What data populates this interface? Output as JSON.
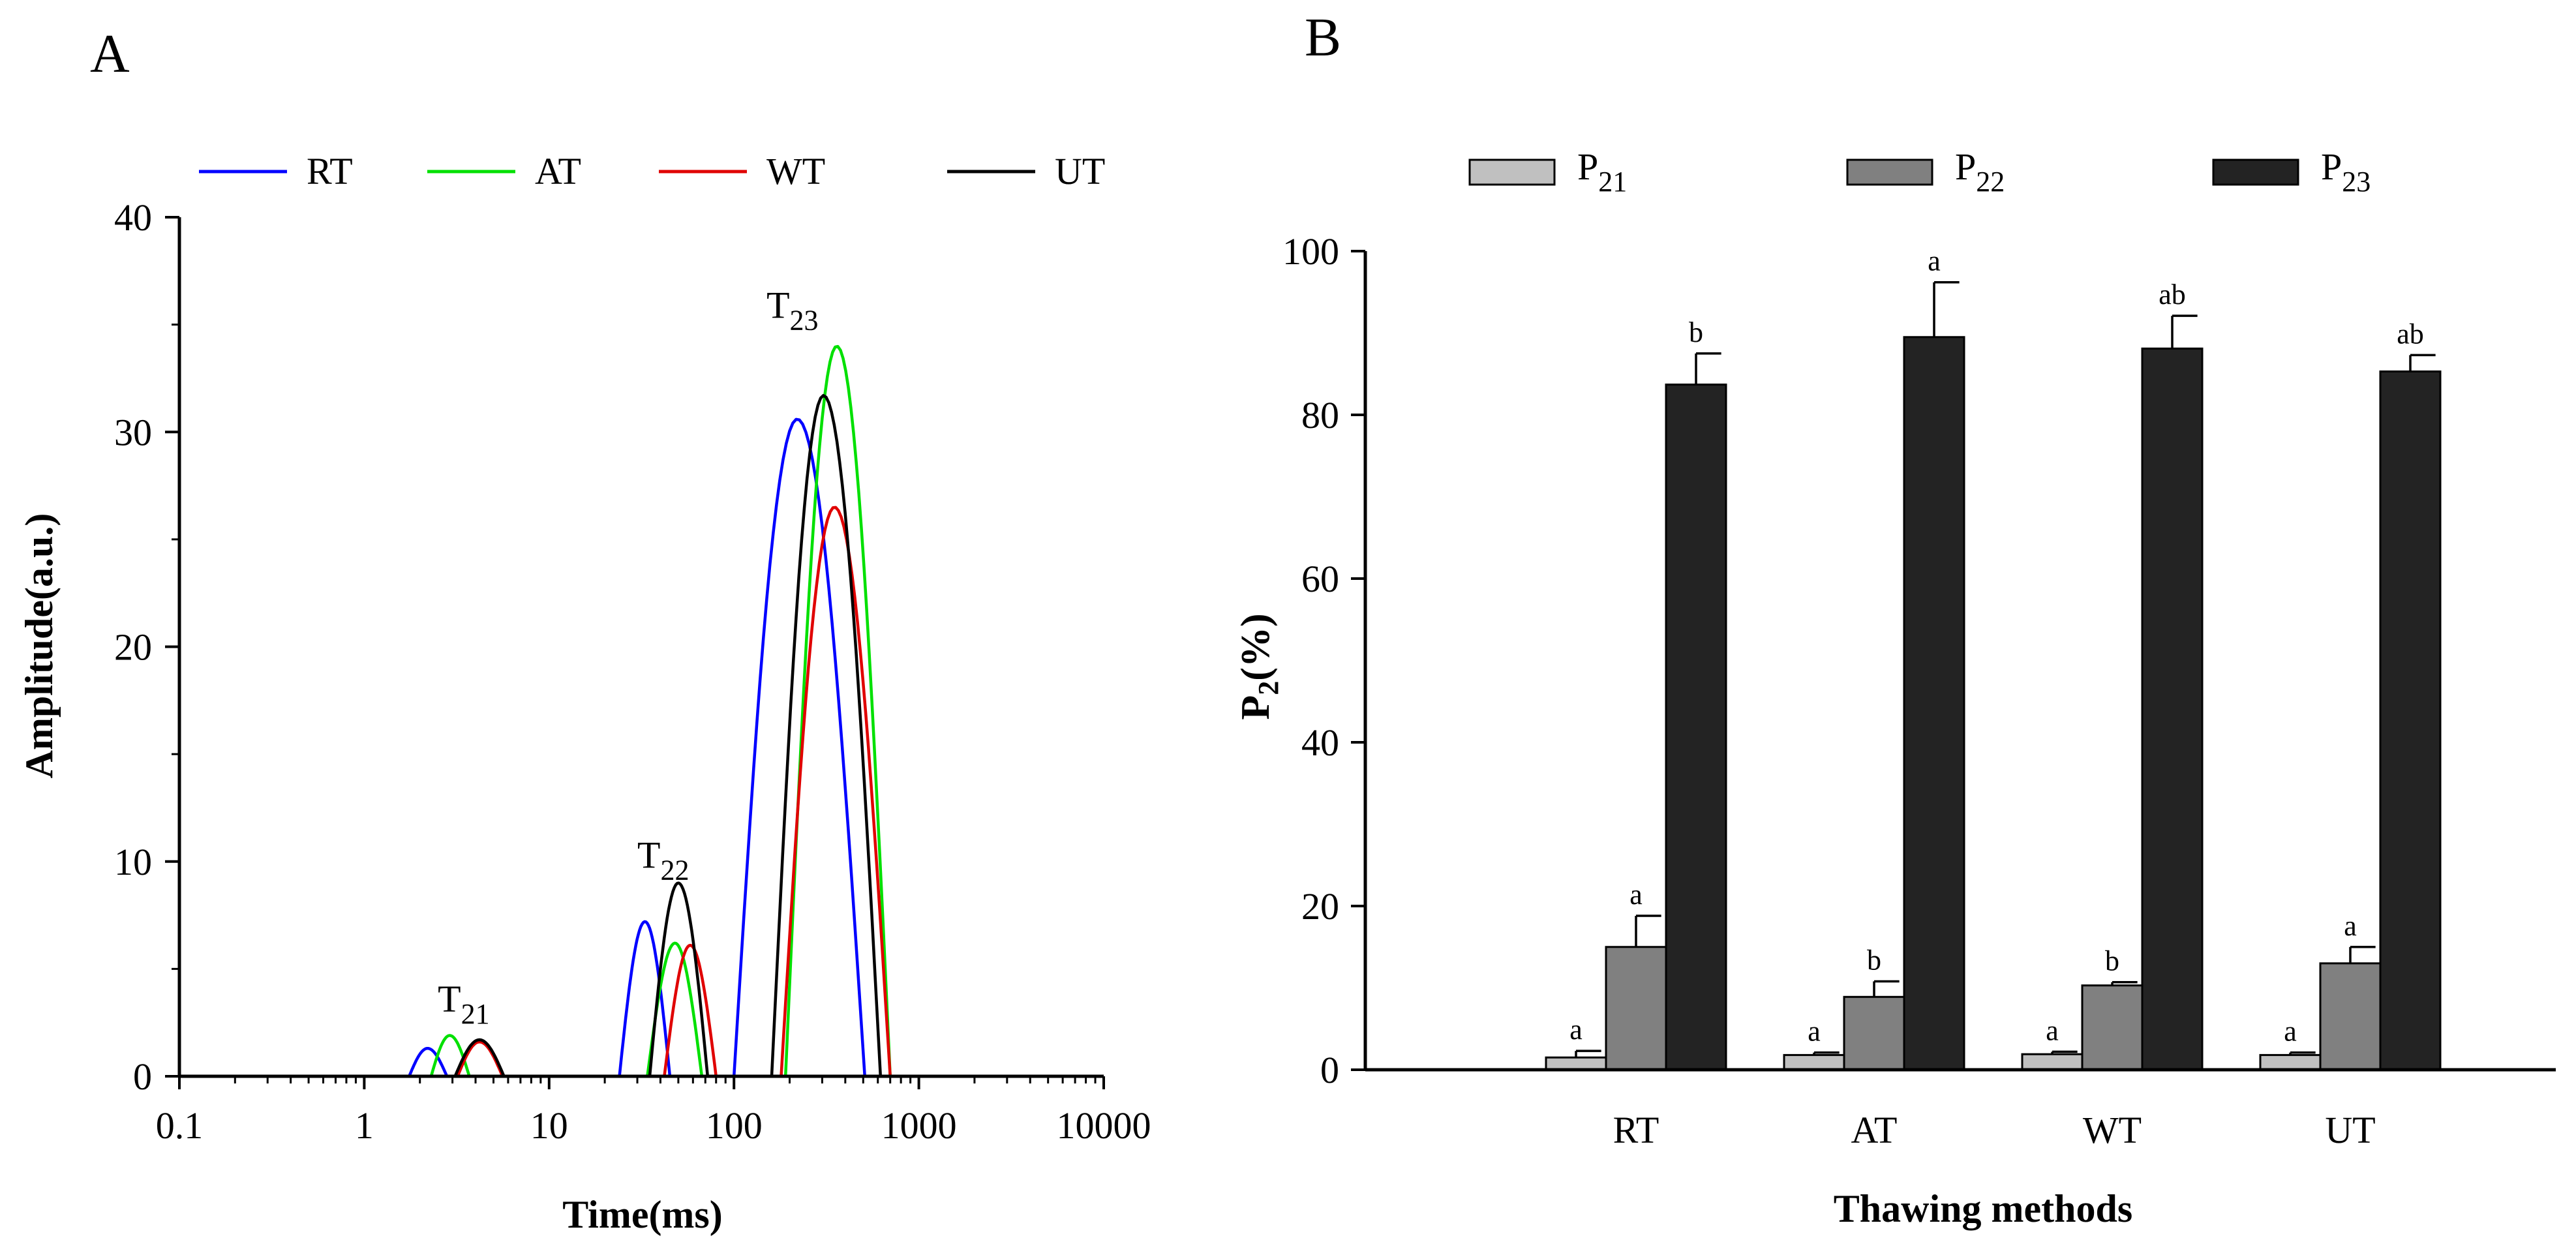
{
  "chart_data": [
    {
      "type": "line",
      "panel_label": "A",
      "xlabel": "Time(ms)",
      "ylabel": "Amplitude(a.u.)",
      "x_scale": "log",
      "xlim": [
        0.1,
        10000
      ],
      "ylim": [
        0,
        40
      ],
      "x_ticks": [
        0.1,
        1,
        10,
        100,
        1000,
        10000
      ],
      "x_tick_labels": [
        "0.1",
        "1",
        "10",
        "100",
        "1000",
        "10000"
      ],
      "y_ticks": [
        0,
        10,
        20,
        30,
        40
      ],
      "y_tick_labels": [
        "0",
        "10",
        "20",
        "30",
        "40"
      ],
      "grid": false,
      "legend_position": "top",
      "peak_labels": [
        {
          "base": "T",
          "sub": "21",
          "x": 2.5,
          "y": 3.0
        },
        {
          "base": "T",
          "sub": "22",
          "x": 30,
          "y": 9.7
        },
        {
          "base": "T",
          "sub": "23",
          "x": 150,
          "y": 35.3
        }
      ],
      "series": [
        {
          "name": "RT",
          "color": "#0000ff",
          "peaks": [
            {
              "center": 2.2,
              "amplitude": 1.3,
              "start": 1.75,
              "end": 2.8
            },
            {
              "center": 33,
              "amplitude": 7.2,
              "start": 24,
              "end": 45
            },
            {
              "center": 220,
              "amplitude": 30.6,
              "start": 100,
              "end": 510
            }
          ]
        },
        {
          "name": "AT",
          "color": "#00e000",
          "peaks": [
            {
              "center": 2.9,
              "amplitude": 1.9,
              "start": 2.3,
              "end": 3.7
            },
            {
              "center": 48,
              "amplitude": 6.2,
              "start": 34,
              "end": 67
            },
            {
              "center": 360,
              "amplitude": 34.0,
              "start": 190,
              "end": 700
            }
          ]
        },
        {
          "name": "WT",
          "color": "#e00000",
          "peaks": [
            {
              "center": 4.2,
              "amplitude": 1.6,
              "start": 3.2,
              "end": 5.6
            },
            {
              "center": 58,
              "amplitude": 6.1,
              "start": 42,
              "end": 80
            },
            {
              "center": 350,
              "amplitude": 26.5,
              "start": 180,
              "end": 700
            }
          ]
        },
        {
          "name": "UT",
          "color": "#000000",
          "peaks": [
            {
              "center": 4.2,
              "amplitude": 1.7,
              "start": 3.1,
              "end": 5.7
            },
            {
              "center": 50,
              "amplitude": 9.0,
              "start": 35,
              "end": 72
            },
            {
              "center": 305,
              "amplitude": 31.7,
              "start": 160,
              "end": 620
            }
          ]
        }
      ]
    },
    {
      "type": "bar",
      "panel_label": "B",
      "xlabel": "Thawing methods",
      "ylabel": "P",
      "ylabel_sub": "2",
      "ylabel_suffix": "(%)",
      "ylim": [
        0,
        100
      ],
      "y_ticks": [
        0,
        20,
        40,
        60,
        80,
        100
      ],
      "y_tick_labels": [
        "0",
        "20",
        "40",
        "60",
        "80",
        "100"
      ],
      "grid": false,
      "legend_position": "top",
      "categories": [
        "RT",
        "AT",
        "WT",
        "UT"
      ],
      "series": [
        {
          "name": "P",
          "name_sub": "21",
          "color": "#c0c0c0",
          "values": [
            1.5,
            1.8,
            1.9,
            1.8
          ],
          "errors": [
            0.8,
            0.3,
            0.3,
            0.3
          ],
          "letters": [
            "a",
            "a",
            "a",
            "a"
          ]
        },
        {
          "name": "P",
          "name_sub": "22",
          "color": "#808080",
          "values": [
            15.0,
            8.9,
            10.3,
            13.0
          ],
          "errors": [
            3.8,
            1.9,
            0.4,
            2.0
          ],
          "letters": [
            "a",
            "b",
            "b",
            "a"
          ]
        },
        {
          "name": "P",
          "name_sub": "23",
          "color": "#232323",
          "values": [
            83.7,
            89.5,
            88.1,
            85.3
          ],
          "errors": [
            3.8,
            6.7,
            4.0,
            2.0
          ],
          "letters": [
            "b",
            "a",
            "ab",
            "ab"
          ]
        }
      ]
    }
  ]
}
